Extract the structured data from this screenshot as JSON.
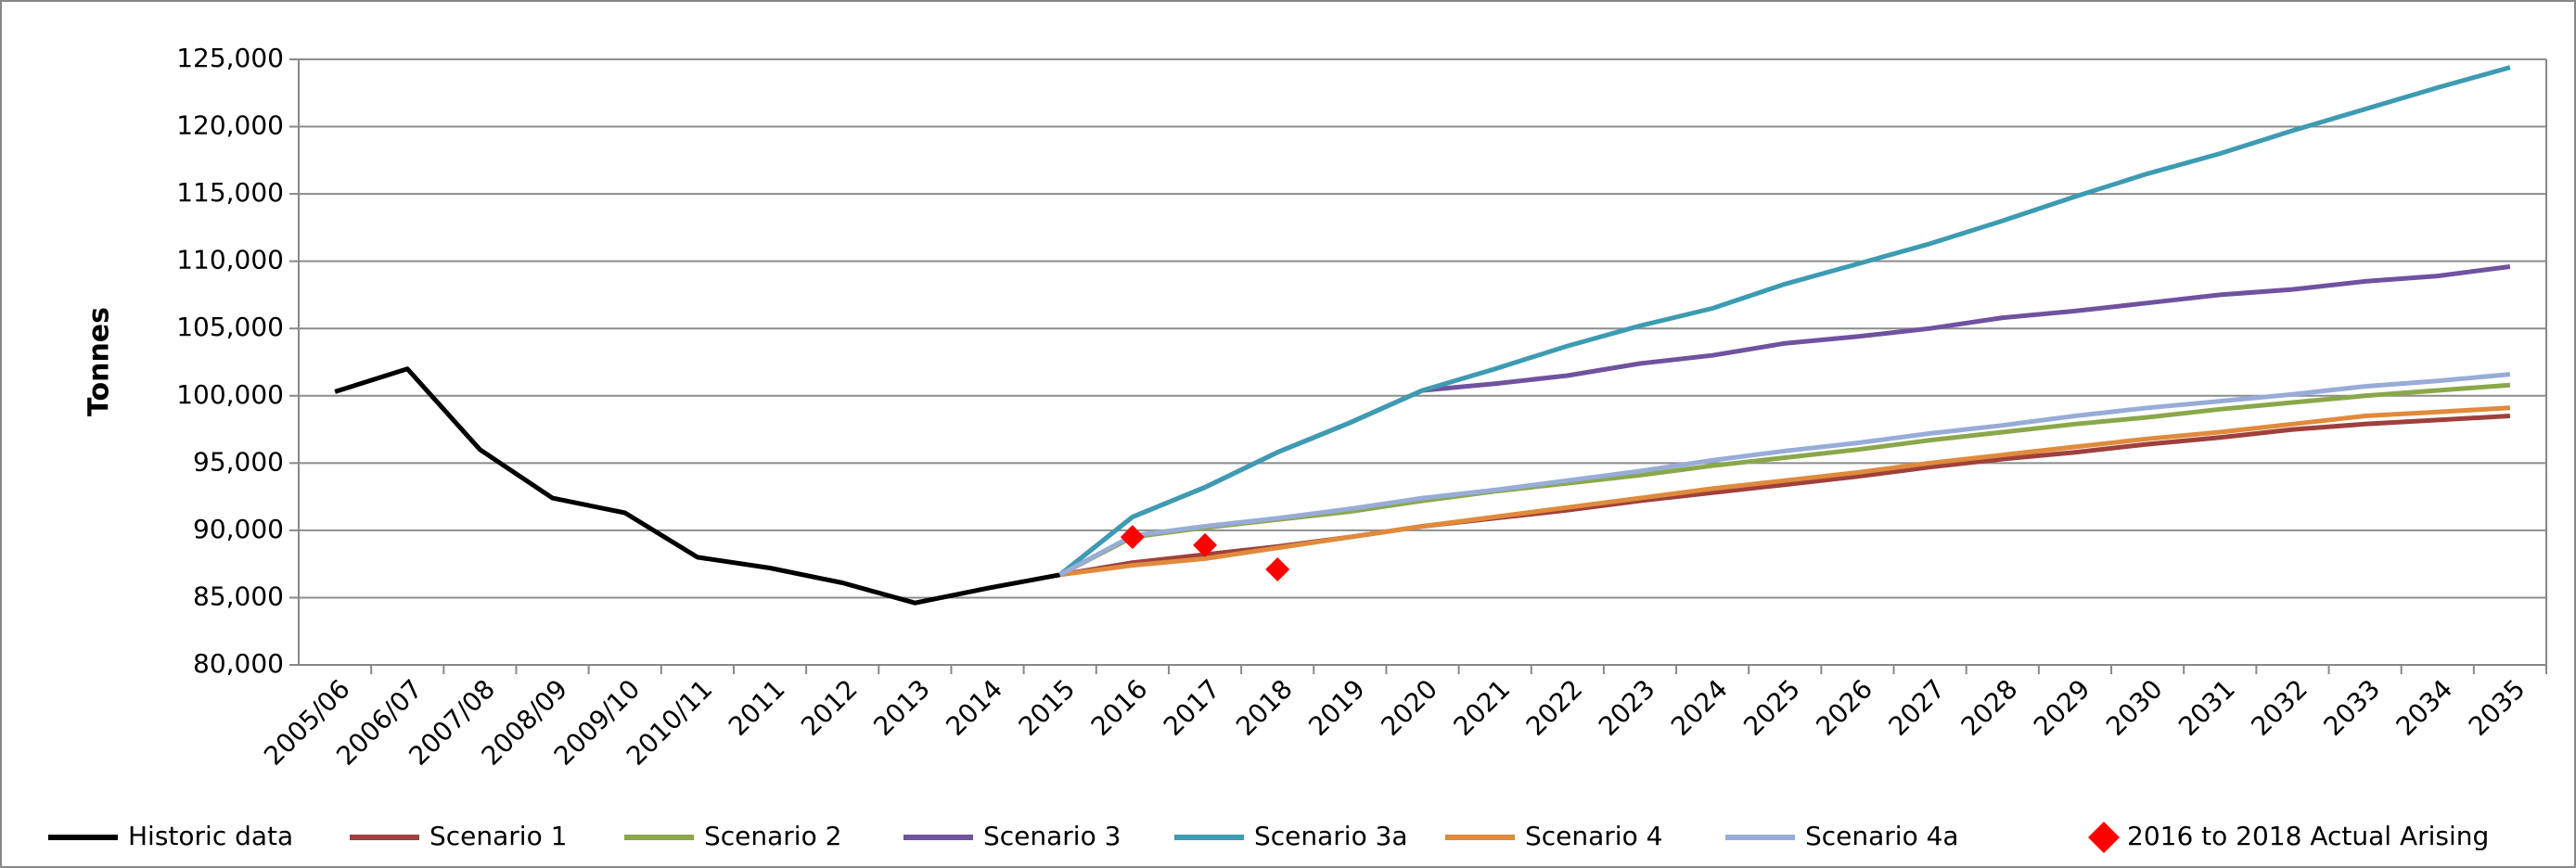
{
  "chart_data": {
    "type": "line",
    "ylabel": "Tonnes",
    "categories": [
      "2005/06",
      "2006/07",
      "2007/08",
      "2008/09",
      "2009/10",
      "2010/11",
      "2011",
      "2012",
      "2013",
      "2014",
      "2015",
      "2016",
      "2017",
      "2018",
      "2019",
      "2020",
      "2021",
      "2022",
      "2023",
      "2024",
      "2025",
      "2026",
      "2027",
      "2028",
      "2029",
      "2030",
      "2031",
      "2032",
      "2033",
      "2034",
      "2035"
    ],
    "ylim": [
      80000,
      125000
    ],
    "yticks": [
      {
        "value": 80000,
        "label": "80,000"
      },
      {
        "value": 85000,
        "label": "85,000"
      },
      {
        "value": 90000,
        "label": "90,000"
      },
      {
        "value": 95000,
        "label": "95,000"
      },
      {
        "value": 100000,
        "label": "100,000"
      },
      {
        "value": 105000,
        "label": "105,000"
      },
      {
        "value": 110000,
        "label": "110,000"
      },
      {
        "value": 115000,
        "label": "115,000"
      },
      {
        "value": 120000,
        "label": "120,000"
      },
      {
        "value": 125000,
        "label": "125,000"
      }
    ],
    "grid": true,
    "legend": "bottom",
    "series": [
      {
        "name": "Historic data",
        "color": "#000000",
        "values": [
          100300,
          102000,
          96000,
          92400,
          91300,
          88000,
          87200,
          86100,
          84600,
          85700,
          86700,
          null,
          null,
          null,
          null,
          null,
          null,
          null,
          null,
          null,
          null,
          null,
          null,
          null,
          null,
          null,
          null,
          null,
          null,
          null,
          null
        ]
      },
      {
        "name": "Scenario 1",
        "color": "#a0403c",
        "values": [
          null,
          null,
          null,
          null,
          null,
          null,
          null,
          null,
          null,
          null,
          86700,
          87600,
          88200,
          88800,
          89500,
          90300,
          90900,
          91500,
          92200,
          92800,
          93400,
          94000,
          94700,
          95300,
          95800,
          96400,
          96900,
          97500,
          97900,
          98200,
          98500
        ]
      },
      {
        "name": "Scenario 2",
        "color": "#8aa84a",
        "values": [
          null,
          null,
          null,
          null,
          null,
          null,
          null,
          null,
          null,
          null,
          86700,
          89500,
          90200,
          90800,
          91400,
          92200,
          92900,
          93500,
          94100,
          94800,
          95400,
          96000,
          96700,
          97300,
          97900,
          98400,
          99000,
          99500,
          100000,
          100400,
          100800
        ]
      },
      {
        "name": "Scenario 3",
        "color": "#7052a0",
        "values": [
          null,
          null,
          null,
          null,
          null,
          null,
          null,
          null,
          null,
          null,
          86700,
          91000,
          93200,
          95800,
          98000,
          100400,
          100900,
          101500,
          102400,
          103000,
          103900,
          104400,
          105000,
          105800,
          106300,
          106900,
          107500,
          107900,
          108500,
          108900,
          109600
        ]
      },
      {
        "name": "Scenario 3a",
        "color": "#3d9bb2",
        "values": [
          null,
          null,
          null,
          null,
          null,
          null,
          null,
          null,
          null,
          null,
          86700,
          91000,
          93200,
          95800,
          98000,
          100400,
          102000,
          103700,
          105200,
          106500,
          108300,
          109800,
          111300,
          113000,
          114800,
          116500,
          118000,
          119700,
          121300,
          122900,
          124400
        ]
      },
      {
        "name": "Scenario 4",
        "color": "#e08a3c",
        "values": [
          null,
          null,
          null,
          null,
          null,
          null,
          null,
          null,
          null,
          null,
          86700,
          87400,
          87900,
          88700,
          89500,
          90300,
          91000,
          91700,
          92400,
          93100,
          93700,
          94300,
          95000,
          95600,
          96200,
          96800,
          97300,
          97900,
          98500,
          98800,
          99100
        ]
      },
      {
        "name": "Scenario 4a",
        "color": "#98acd8",
        "values": [
          null,
          null,
          null,
          null,
          null,
          null,
          null,
          null,
          null,
          null,
          86700,
          89600,
          90300,
          90900,
          91600,
          92400,
          93000,
          93700,
          94400,
          95200,
          95900,
          96500,
          97200,
          97800,
          98500,
          99100,
          99600,
          100100,
          100700,
          101100,
          101600
        ]
      },
      {
        "name": "2016 to 2018 Actual Arising",
        "color": "#ff0000",
        "marker": "diamond",
        "values": [
          null,
          null,
          null,
          null,
          null,
          null,
          null,
          null,
          null,
          null,
          null,
          89500,
          88900,
          87100,
          null,
          null,
          null,
          null,
          null,
          null,
          null,
          null,
          null,
          null,
          null,
          null,
          null,
          null,
          null,
          null,
          null
        ]
      }
    ]
  }
}
